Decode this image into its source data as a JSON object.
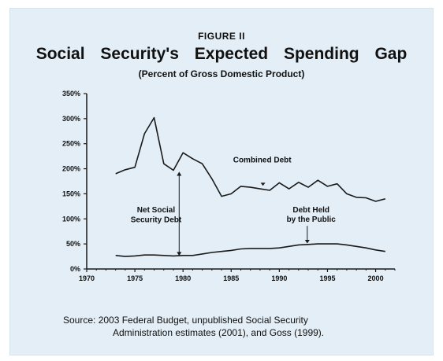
{
  "figure_label": "FIGURE  II",
  "title": "Social Security's Expected Spending Gap",
  "subtitle": "(Percent of Gross Domestic Product)",
  "source": {
    "line1": "Source:  2003 Federal Budget, unpublished Social Security",
    "line2": "Administration estimates (2001), and Goss (1999)."
  },
  "colors": {
    "background": "#e3eef6",
    "line": "#1a1a1a"
  },
  "chart_data": {
    "type": "line",
    "xlim": [
      1970,
      2002
    ],
    "ylim": [
      0,
      350
    ],
    "x_ticks": [
      1970,
      1975,
      1980,
      1985,
      1990,
      1995,
      2000
    ],
    "x_tick_labels": [
      "1970",
      "1975",
      "1980",
      "1985",
      "1990",
      "1995",
      "2000"
    ],
    "y_ticks": [
      0,
      50,
      100,
      150,
      200,
      250,
      300,
      350
    ],
    "y_tick_labels": [
      "0%",
      "50%",
      "100%",
      "150%",
      "200%",
      "250%",
      "300%",
      "350%"
    ],
    "series": [
      {
        "name": "Combined Debt",
        "x": [
          1973,
          1974,
          1975,
          1976,
          1977,
          1978,
          1979,
          1980,
          1981,
          1982,
          1983,
          1984,
          1985,
          1986,
          1987,
          1988,
          1989,
          1990,
          1991,
          1992,
          1993,
          1994,
          1995,
          1996,
          1997,
          1998,
          1999,
          2000,
          2001
        ],
        "y": [
          190,
          198,
          203,
          270,
          302,
          210,
          197,
          232,
          220,
          210,
          180,
          145,
          150,
          165,
          163,
          160,
          157,
          172,
          160,
          173,
          163,
          177,
          165,
          170,
          150,
          143,
          142,
          135,
          140
        ]
      },
      {
        "name": "Debt Held by the Public",
        "x": [
          1973,
          1974,
          1975,
          1976,
          1977,
          1978,
          1979,
          1980,
          1981,
          1982,
          1983,
          1984,
          1985,
          1986,
          1987,
          1988,
          1989,
          1990,
          1991,
          1992,
          1993,
          1994,
          1995,
          1996,
          1997,
          1998,
          1999,
          2000,
          2001
        ],
        "y": [
          27,
          25,
          26,
          28,
          28,
          27,
          26,
          27,
          27,
          30,
          33,
          35,
          37,
          40,
          41,
          41,
          41,
          42,
          45,
          48,
          49,
          50,
          50,
          50,
          48,
          45,
          42,
          38,
          35
        ]
      }
    ],
    "annotations": [
      {
        "text": "Combined Debt",
        "lines": [
          "Combined Debt"
        ]
      },
      {
        "text": "Net Social Security Debt",
        "lines": [
          "Net Social",
          "Security Debt"
        ]
      },
      {
        "text": "Debt Held by the Public",
        "lines": [
          "Debt Held",
          "by the Public"
        ]
      }
    ]
  }
}
